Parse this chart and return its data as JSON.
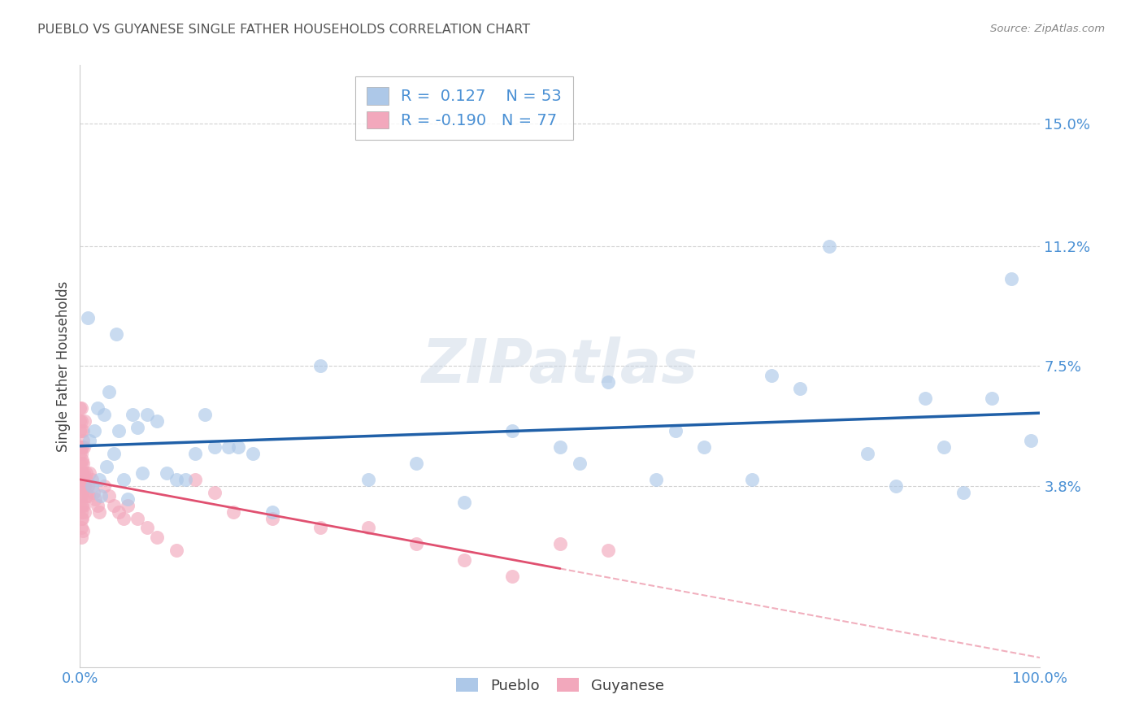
{
  "title": "PUEBLO VS GUYANESE SINGLE FATHER HOUSEHOLDS CORRELATION CHART",
  "source": "Source: ZipAtlas.com",
  "ylabel": "Single Father Households",
  "ytick_labels": [
    "3.8%",
    "7.5%",
    "11.2%",
    "15.0%"
  ],
  "ytick_values": [
    0.038,
    0.075,
    0.112,
    0.15
  ],
  "xlim": [
    0.0,
    1.0
  ],
  "ylim": [
    -0.018,
    0.168
  ],
  "pueblo_R": "0.127",
  "pueblo_N": "53",
  "guyanese_R": "-0.190",
  "guyanese_N": "77",
  "pueblo_color": "#adc8e8",
  "guyanese_color": "#f2a8bc",
  "pueblo_line_color": "#2060a8",
  "guyanese_line_color": "#e05070",
  "background_color": "#ffffff",
  "grid_color": "#cccccc",
  "axis_label_color": "#4a90d4",
  "title_color": "#555555",
  "legend_text_color": "#4a90d4",
  "pueblo_x": [
    0.008,
    0.01,
    0.012,
    0.015,
    0.018,
    0.02,
    0.022,
    0.025,
    0.028,
    0.03,
    0.035,
    0.038,
    0.04,
    0.045,
    0.05,
    0.055,
    0.06,
    0.065,
    0.07,
    0.08,
    0.09,
    0.1,
    0.11,
    0.12,
    0.13,
    0.14,
    0.155,
    0.165,
    0.18,
    0.2,
    0.25,
    0.3,
    0.35,
    0.4,
    0.45,
    0.5,
    0.52,
    0.55,
    0.6,
    0.62,
    0.65,
    0.7,
    0.72,
    0.75,
    0.78,
    0.82,
    0.85,
    0.88,
    0.9,
    0.92,
    0.95,
    0.97,
    0.99
  ],
  "pueblo_y": [
    0.09,
    0.052,
    0.038,
    0.055,
    0.062,
    0.04,
    0.035,
    0.06,
    0.044,
    0.067,
    0.048,
    0.085,
    0.055,
    0.04,
    0.034,
    0.06,
    0.056,
    0.042,
    0.06,
    0.058,
    0.042,
    0.04,
    0.04,
    0.048,
    0.06,
    0.05,
    0.05,
    0.05,
    0.048,
    0.03,
    0.075,
    0.04,
    0.045,
    0.033,
    0.055,
    0.05,
    0.045,
    0.07,
    0.04,
    0.055,
    0.05,
    0.04,
    0.072,
    0.068,
    0.112,
    0.048,
    0.038,
    0.065,
    0.05,
    0.036,
    0.065,
    0.102,
    0.052
  ],
  "guyanese_x": [
    0.0,
    0.0,
    0.0,
    0.0,
    0.0,
    0.0,
    0.0,
    0.0,
    0.0,
    0.0,
    0.0,
    0.001,
    0.001,
    0.001,
    0.001,
    0.001,
    0.001,
    0.001,
    0.001,
    0.001,
    0.001,
    0.001,
    0.001,
    0.001,
    0.001,
    0.001,
    0.002,
    0.002,
    0.002,
    0.002,
    0.002,
    0.002,
    0.002,
    0.003,
    0.003,
    0.003,
    0.003,
    0.003,
    0.004,
    0.004,
    0.004,
    0.004,
    0.005,
    0.005,
    0.005,
    0.006,
    0.006,
    0.006,
    0.008,
    0.009,
    0.01,
    0.012,
    0.014,
    0.016,
    0.018,
    0.02,
    0.025,
    0.03,
    0.035,
    0.04,
    0.045,
    0.05,
    0.06,
    0.07,
    0.08,
    0.1,
    0.12,
    0.14,
    0.16,
    0.2,
    0.25,
    0.3,
    0.35,
    0.4,
    0.45,
    0.5,
    0.55
  ],
  "guyanese_y": [
    0.062,
    0.058,
    0.055,
    0.05,
    0.048,
    0.045,
    0.042,
    0.04,
    0.038,
    0.035,
    0.032,
    0.062,
    0.058,
    0.055,
    0.05,
    0.048,
    0.045,
    0.042,
    0.04,
    0.038,
    0.035,
    0.032,
    0.03,
    0.028,
    0.025,
    0.022,
    0.05,
    0.046,
    0.042,
    0.038,
    0.035,
    0.032,
    0.028,
    0.052,
    0.045,
    0.04,
    0.024,
    0.055,
    0.042,
    0.038,
    0.032,
    0.05,
    0.038,
    0.03,
    0.058,
    0.042,
    0.035,
    0.04,
    0.038,
    0.035,
    0.042,
    0.04,
    0.036,
    0.034,
    0.032,
    0.03,
    0.038,
    0.035,
    0.032,
    0.03,
    0.028,
    0.032,
    0.028,
    0.025,
    0.022,
    0.018,
    0.04,
    0.036,
    0.03,
    0.028,
    0.025,
    0.025,
    0.02,
    0.015,
    0.01,
    0.02,
    0.018
  ],
  "guyanese_line_solid_end": 0.5,
  "pueblo_line_start": 0.0,
  "pueblo_line_end": 1.0
}
